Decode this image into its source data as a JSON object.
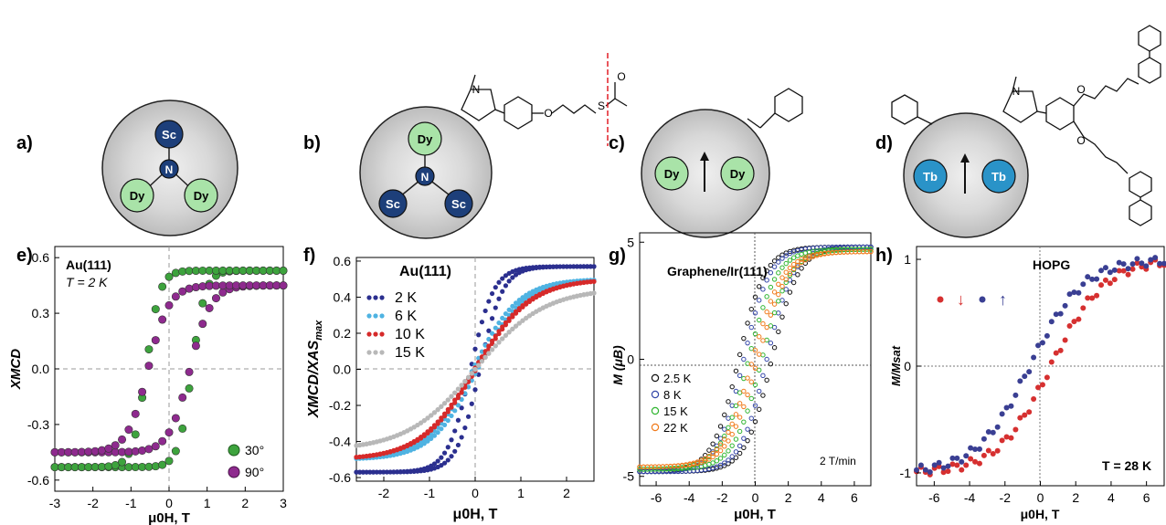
{
  "panel_labels": [
    "a)",
    "b)",
    "c)",
    "d)",
    "e)",
    "f)",
    "g)",
    "h)"
  ],
  "colors": {
    "sc_blue": "#1d3f7a",
    "dy_green": "#a9e3a8",
    "tb_blue": "#2a93c8",
    "cage_gray": "#c8c8c8",
    "red_dash": "#e21f26"
  },
  "molecules": {
    "a": {
      "atoms": [
        "Sc",
        "N",
        "Dy",
        "Dy"
      ]
    },
    "b": {
      "atoms": [
        "Dy",
        "N",
        "Sc",
        "Sc"
      ]
    },
    "c": {
      "atoms": [
        "Dy",
        "Dy"
      ],
      "spin": "arrow-up"
    },
    "d": {
      "atoms": [
        "Tb",
        "Tb"
      ],
      "spin": "arrow-up"
    }
  },
  "chart_data": [
    {
      "panel": "e)",
      "type": "scatter",
      "annotation": "Au(111)",
      "annotation2": "T = 2 K",
      "xlabel": "μ0H, T",
      "ylabel": "XMCD",
      "xlim": [
        -3,
        3
      ],
      "ylim": [
        -0.66,
        0.66
      ],
      "xticks": [
        "-3",
        "-2",
        "-1",
        "0",
        "1",
        "2",
        "3"
      ],
      "xtick_values": [
        -3,
        -2,
        -1,
        0,
        1,
        2,
        3
      ],
      "yticks": [
        "-0.6",
        "-0.3",
        "0.0",
        "0.3",
        "0.6"
      ],
      "ytick_values": [
        -0.6,
        -0.3,
        0.0,
        0.3,
        0.6
      ],
      "series": [
        {
          "name": "30°",
          "color": "#3da33d",
          "model": {
            "amp": 0.53,
            "coercive": 0.6,
            "width": 0.35
          }
        },
        {
          "name": "90°",
          "color": "#8e2a8e",
          "model": {
            "amp": 0.45,
            "coercive": 0.55,
            "width": 0.55
          }
        }
      ]
    },
    {
      "panel": "f)",
      "type": "scatter",
      "annotation": "Au(111)",
      "xlabel": "μ0H, T",
      "ylabel": "XMCD/XAS",
      "ylabel_sub": "max",
      "xlim": [
        -2.6,
        2.6
      ],
      "ylim": [
        -0.62,
        0.62
      ],
      "xticks": [
        "-2",
        "-1",
        "0",
        "1",
        "2"
      ],
      "xtick_values": [
        -2,
        -1,
        0,
        1,
        2
      ],
      "yticks": [
        "-0.6",
        "-0.4",
        "-0.2",
        "0.0",
        "0.2",
        "0.4",
        "0.6"
      ],
      "ytick_values": [
        -0.6,
        -0.4,
        -0.2,
        0.0,
        0.2,
        0.4,
        0.6
      ],
      "series": [
        {
          "name": "2 K",
          "color": "#2b2f8f",
          "model": {
            "amp": 0.57,
            "coercive": 0.1,
            "width": 0.5
          }
        },
        {
          "name": "6 K",
          "color": "#4fb3e2",
          "model": {
            "amp": 0.5,
            "coercive": 0.05,
            "width": 1.0
          }
        },
        {
          "name": "10 K",
          "color": "#d62a2a",
          "model": {
            "amp": 0.5,
            "coercive": 0.02,
            "width": 1.2
          }
        },
        {
          "name": "15 K",
          "color": "#b8b8b8",
          "model": {
            "amp": 0.45,
            "coercive": 0.0,
            "width": 1.5
          }
        }
      ]
    },
    {
      "panel": "g)",
      "type": "scatter",
      "annotation": "Graphene/Ir(111)",
      "annotation2": "2 T/min",
      "xlabel": "μ0H, T",
      "ylabel": "M (μB)",
      "xlim": [
        -7,
        7
      ],
      "ylim": [
        -5.4,
        5.4
      ],
      "xticks": [
        "-6",
        "-4",
        "-2",
        "0",
        "2",
        "4",
        "6"
      ],
      "xtick_values": [
        -6,
        -4,
        -2,
        0,
        2,
        4,
        6
      ],
      "yticks": [
        "-5",
        "0",
        "5"
      ],
      "ytick_values": [
        -5,
        0,
        5
      ],
      "series": [
        {
          "name": "2.5 K",
          "color": "#111111",
          "model": {
            "amp": 4.8,
            "coercive": 1.0,
            "width": 1.6
          }
        },
        {
          "name": "8 K",
          "color": "#3346a8",
          "model": {
            "amp": 4.8,
            "coercive": 0.7,
            "width": 1.6
          }
        },
        {
          "name": "15 K",
          "color": "#2fb52f",
          "model": {
            "amp": 4.7,
            "coercive": 0.4,
            "width": 1.7
          }
        },
        {
          "name": "22 K",
          "color": "#f07a1a",
          "model": {
            "amp": 4.6,
            "coercive": 0.15,
            "width": 1.8
          }
        }
      ]
    },
    {
      "panel": "h)",
      "type": "scatter",
      "annotation": "HOPG",
      "annotation2": "T = 28 K",
      "xlabel": "μ0H, T",
      "ylabel": "M/Msat",
      "xlim": [
        -7,
        7
      ],
      "ylim": [
        -1.12,
        1.12
      ],
      "xticks": [
        "-6",
        "-4",
        "-2",
        "0",
        "2",
        "4",
        "6"
      ],
      "xtick_values": [
        -6,
        -4,
        -2,
        0,
        2,
        4,
        6
      ],
      "yticks": [
        "-1",
        "0",
        "1"
      ],
      "ytick_values": [
        -1,
        0,
        1
      ],
      "series": [
        {
          "name": "↓",
          "color": "#d63030",
          "model": {
            "amp": 1.0,
            "coercive": 0.6,
            "width": 3.0
          }
        },
        {
          "name": "↑",
          "color": "#3a3f93",
          "model": {
            "amp": 1.0,
            "coercive": -0.6,
            "width": 3.0
          }
        }
      ]
    }
  ]
}
